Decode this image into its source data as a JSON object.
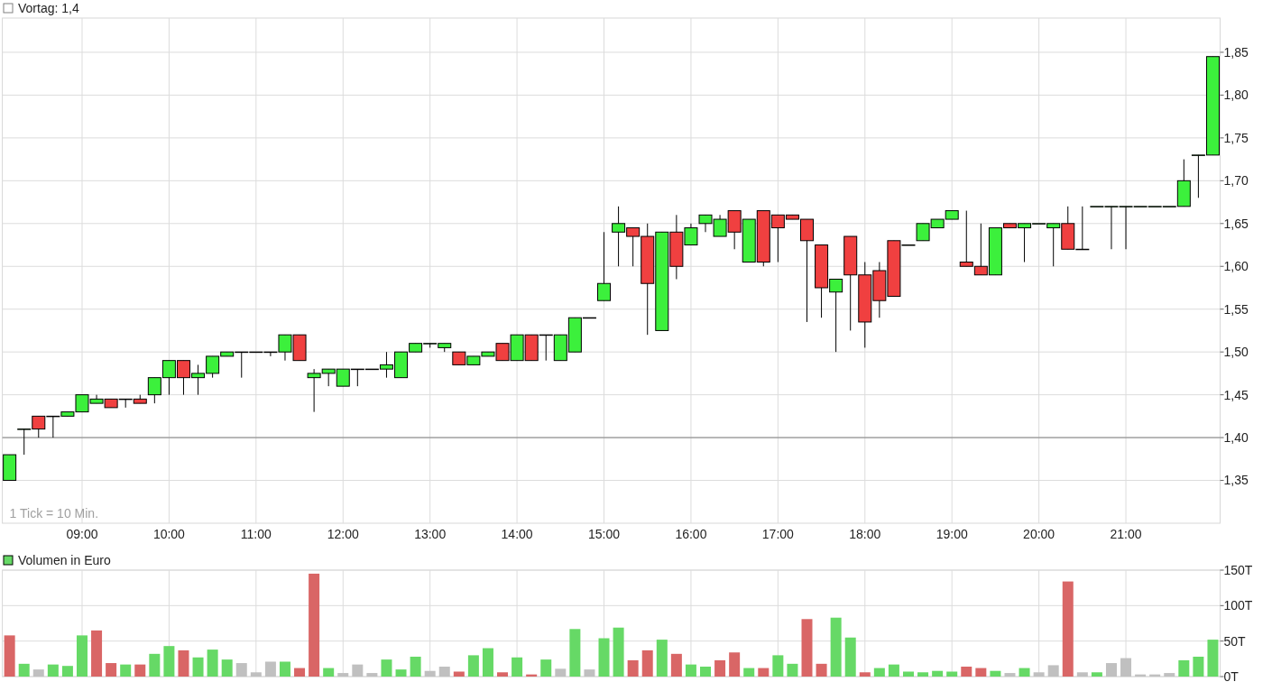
{
  "chart_data": [
    {
      "type": "candlestick",
      "legend": "top left",
      "grid": true,
      "categories": [
        null,
        null,
        null,
        null,
        null,
        "09:00",
        null,
        null,
        null,
        null,
        null,
        "10:00",
        null,
        null,
        null,
        null,
        null,
        "11:00",
        null,
        null,
        null,
        null,
        null,
        "12:00",
        null,
        null,
        null,
        null,
        null,
        "13:00",
        null,
        null,
        null,
        null,
        null,
        "14:00",
        null,
        null,
        null,
        null,
        null,
        "15:00",
        null,
        null,
        null,
        null,
        null,
        "16:00",
        null,
        null,
        null,
        null,
        null,
        "17:00",
        null,
        null,
        null,
        null,
        null,
        "18:00",
        null,
        null,
        null,
        null,
        null,
        "19:00",
        null,
        null,
        null,
        null,
        null,
        "20:00",
        null,
        null,
        null,
        null,
        null,
        "21:00",
        null,
        null,
        null,
        null,
        null,
        null
      ],
      "ohlc": [
        [
          1.35,
          1.38,
          1.35,
          1.38
        ],
        [
          1.41,
          1.41,
          1.38,
          1.41
        ],
        [
          1.425,
          1.425,
          1.4,
          1.41
        ],
        [
          1.425,
          1.425,
          1.4,
          1.425
        ],
        [
          1.425,
          1.43,
          1.425,
          1.43
        ],
        [
          1.43,
          1.45,
          1.43,
          1.45
        ],
        [
          1.44,
          1.45,
          1.44,
          1.445
        ],
        [
          1.445,
          1.445,
          1.435,
          1.435
        ],
        [
          1.445,
          1.445,
          1.435,
          1.445
        ],
        [
          1.445,
          1.45,
          1.44,
          1.44
        ],
        [
          1.45,
          1.47,
          1.44,
          1.47
        ],
        [
          1.47,
          1.49,
          1.45,
          1.49
        ],
        [
          1.49,
          1.49,
          1.45,
          1.47
        ],
        [
          1.47,
          1.485,
          1.45,
          1.475
        ],
        [
          1.475,
          1.495,
          1.47,
          1.495
        ],
        [
          1.495,
          1.5,
          1.495,
          1.5
        ],
        [
          1.5,
          1.5,
          1.47,
          1.5
        ],
        [
          1.5,
          1.5,
          1.5,
          1.5
        ],
        [
          1.5,
          1.5,
          1.495,
          1.5
        ],
        [
          1.5,
          1.52,
          1.49,
          1.52
        ],
        [
          1.52,
          1.52,
          1.49,
          1.49
        ],
        [
          1.47,
          1.48,
          1.43,
          1.475
        ],
        [
          1.475,
          1.48,
          1.46,
          1.48
        ],
        [
          1.46,
          1.48,
          1.46,
          1.48
        ],
        [
          1.48,
          1.48,
          1.46,
          1.48
        ],
        [
          1.48,
          1.48,
          1.48,
          1.48
        ],
        [
          1.48,
          1.5,
          1.47,
          1.485
        ],
        [
          1.47,
          1.5,
          1.47,
          1.5
        ],
        [
          1.5,
          1.51,
          1.5,
          1.51
        ],
        [
          1.51,
          1.51,
          1.505,
          1.51
        ],
        [
          1.505,
          1.51,
          1.5,
          1.51
        ],
        [
          1.5,
          1.5,
          1.485,
          1.485
        ],
        [
          1.485,
          1.495,
          1.485,
          1.495
        ],
        [
          1.495,
          1.5,
          1.495,
          1.5
        ],
        [
          1.51,
          1.51,
          1.49,
          1.49
        ],
        [
          1.49,
          1.52,
          1.49,
          1.52
        ],
        [
          1.52,
          1.52,
          1.49,
          1.49
        ],
        [
          1.52,
          1.52,
          1.49,
          1.52
        ],
        [
          1.49,
          1.52,
          1.49,
          1.52
        ],
        [
          1.5,
          1.54,
          1.5,
          1.54
        ],
        [
          1.54,
          1.54,
          1.54,
          1.54
        ],
        [
          1.56,
          1.64,
          1.56,
          1.58
        ],
        [
          1.64,
          1.67,
          1.6,
          1.65
        ],
        [
          1.645,
          1.645,
          1.6,
          1.635
        ],
        [
          1.635,
          1.65,
          1.52,
          1.58
        ],
        [
          1.525,
          1.64,
          1.525,
          1.64
        ],
        [
          1.64,
          1.66,
          1.585,
          1.6
        ],
        [
          1.625,
          1.65,
          1.625,
          1.645
        ],
        [
          1.65,
          1.66,
          1.64,
          1.66
        ],
        [
          1.635,
          1.66,
          1.635,
          1.655
        ],
        [
          1.665,
          1.665,
          1.62,
          1.64
        ],
        [
          1.605,
          1.655,
          1.605,
          1.655
        ],
        [
          1.665,
          1.665,
          1.6,
          1.605
        ],
        [
          1.66,
          1.66,
          1.605,
          1.645
        ],
        [
          1.66,
          1.66,
          1.655,
          1.655
        ],
        [
          1.655,
          1.655,
          1.535,
          1.63
        ],
        [
          1.625,
          1.625,
          1.54,
          1.575
        ],
        [
          1.57,
          1.585,
          1.5,
          1.585
        ],
        [
          1.635,
          1.635,
          1.525,
          1.59
        ],
        [
          1.59,
          1.605,
          1.505,
          1.535
        ],
        [
          1.595,
          1.605,
          1.54,
          1.56
        ],
        [
          1.63,
          1.63,
          1.565,
          1.565
        ],
        [
          1.625,
          1.625,
          1.625,
          1.625
        ],
        [
          1.63,
          1.65,
          1.63,
          1.65
        ],
        [
          1.645,
          1.655,
          1.645,
          1.655
        ],
        [
          1.655,
          1.665,
          1.655,
          1.665
        ],
        [
          1.605,
          1.665,
          1.6,
          1.6
        ],
        [
          1.6,
          1.65,
          1.59,
          1.59
        ],
        [
          1.59,
          1.645,
          1.59,
          1.645
        ],
        [
          1.65,
          1.65,
          1.645,
          1.645
        ],
        [
          1.645,
          1.65,
          1.605,
          1.65
        ],
        [
          1.65,
          1.65,
          1.65,
          1.65
        ],
        [
          1.645,
          1.65,
          1.6,
          1.65
        ],
        [
          1.65,
          1.67,
          1.62,
          1.62
        ],
        [
          1.62,
          1.67,
          1.62,
          1.62
        ],
        [
          1.67,
          1.67,
          1.67,
          1.67
        ],
        [
          1.67,
          1.67,
          1.62,
          1.67
        ],
        [
          1.67,
          1.67,
          1.62,
          1.67
        ],
        [
          1.67,
          1.67,
          1.67,
          1.67
        ],
        [
          1.67,
          1.67,
          1.67,
          1.67
        ],
        [
          1.67,
          1.67,
          1.67,
          1.67
        ],
        [
          1.67,
          1.725,
          1.67,
          1.7
        ],
        [
          1.73,
          1.73,
          1.68,
          1.73
        ],
        [
          1.73,
          1.845,
          1.73,
          1.845
        ]
      ],
      "colors": [
        "#3cf03c",
        "#3cf03c",
        "#f04040",
        "#3cf03c",
        "#3cf03c",
        "#3cf03c",
        "#3cf03c",
        "#f04040",
        "#3cf03c",
        "#f04040",
        "#3cf03c",
        "#3cf03c",
        "#f04040",
        "#3cf03c",
        "#3cf03c",
        "#3cf03c",
        "#3cf03c",
        "#3cf03c",
        "#3cf03c",
        "#3cf03c",
        "#f04040",
        "#3cf03c",
        "#3cf03c",
        "#3cf03c",
        "#3cf03c",
        "#3cf03c",
        "#3cf03c",
        "#3cf03c",
        "#3cf03c",
        "#3cf03c",
        "#3cf03c",
        "#f04040",
        "#3cf03c",
        "#3cf03c",
        "#f04040",
        "#3cf03c",
        "#f04040",
        "#3cf03c",
        "#3cf03c",
        "#3cf03c",
        "#3cf03c",
        "#3cf03c",
        "#3cf03c",
        "#f04040",
        "#f04040",
        "#3cf03c",
        "#f04040",
        "#3cf03c",
        "#3cf03c",
        "#3cf03c",
        "#f04040",
        "#3cf03c",
        "#f04040",
        "#f04040",
        "#f04040",
        "#f04040",
        "#f04040",
        "#3cf03c",
        "#f04040",
        "#f04040",
        "#f04040",
        "#f04040",
        "#3cf03c",
        "#3cf03c",
        "#3cf03c",
        "#3cf03c",
        "#f04040",
        "#f04040",
        "#3cf03c",
        "#f04040",
        "#3cf03c",
        "#3cf03c",
        "#3cf03c",
        "#f04040",
        "#3cf03c",
        "#3cf03c",
        "#3cf03c",
        "#3cf03c",
        "#3cf03c",
        "#3cf03c",
        "#3cf03c",
        "#3cf03c",
        "#3cf03c",
        "#3cf03c"
      ],
      "ylim": [
        1.3,
        1.89
      ],
      "yticks": [
        {
          "value": 1.35,
          "label": "1,35"
        },
        {
          "value": 1.4,
          "label": "1,40"
        },
        {
          "value": 1.45,
          "label": "1,45"
        },
        {
          "value": 1.5,
          "label": "1,50"
        },
        {
          "value": 1.55,
          "label": "1,55"
        },
        {
          "value": 1.6,
          "label": "1,60"
        },
        {
          "value": 1.65,
          "label": "1,65"
        },
        {
          "value": 1.7,
          "label": "1,70"
        },
        {
          "value": 1.75,
          "label": "1,75"
        },
        {
          "value": 1.8,
          "label": "1,80"
        },
        {
          "value": 1.85,
          "label": "1,85"
        }
      ],
      "ref_lines": [
        {
          "axis": "y",
          "value": 1.4,
          "label": "Vortag: 1,4",
          "color": "#808080"
        }
      ],
      "annotations": [
        "1 Tick = 10 Min."
      ]
    },
    {
      "type": "bar",
      "legend": "top left",
      "grid": true,
      "tick_labels": "y",
      "categories": [
        null,
        null,
        null,
        null,
        null,
        null,
        null,
        null,
        null,
        null,
        null,
        null,
        null,
        null,
        null,
        null,
        null,
        null,
        null,
        null,
        null,
        null,
        null,
        null,
        null,
        null,
        null,
        null,
        null,
        null,
        null,
        null,
        null,
        null,
        null,
        null,
        null,
        null,
        null,
        null,
        null,
        null,
        null,
        null,
        null,
        null,
        null,
        null,
        null,
        null,
        null,
        null,
        null,
        null,
        null,
        null,
        null,
        null,
        null,
        null,
        null,
        null,
        null,
        null,
        null,
        null,
        null,
        null,
        null,
        null,
        null,
        null,
        null,
        null,
        null,
        null,
        null,
        null,
        null,
        null,
        null,
        null,
        null,
        null
      ],
      "series": [
        {
          "name": "Volumen in Euro",
          "color": "#66d966",
          "values": [
            58,
            18,
            10,
            17,
            15,
            58,
            65,
            19,
            17,
            17,
            32,
            43,
            37,
            27,
            38,
            24,
            19,
            6,
            21,
            21,
            12,
            145,
            12,
            5,
            17,
            5,
            24,
            10,
            28,
            8,
            14,
            7,
            30,
            40,
            6,
            27,
            3,
            24,
            11,
            67,
            10,
            54,
            69,
            23,
            37,
            52,
            32,
            17,
            14,
            23,
            34,
            12,
            12,
            30,
            18,
            81,
            18,
            83,
            55,
            6,
            12,
            17,
            7,
            6,
            8,
            7,
            14,
            12,
            8,
            5,
            12,
            6,
            16,
            134,
            6,
            6,
            19,
            26,
            3,
            3,
            5,
            23,
            28,
            52
          ],
          "colors": [
            "#d96666",
            "#66d966",
            "#c0c0c0",
            "#66d966",
            "#66d966",
            "#66d966",
            "#d96666",
            "#d96666",
            "#66d966",
            "#d96666",
            "#66d966",
            "#66d966",
            "#d96666",
            "#66d966",
            "#66d966",
            "#66d966",
            "#c0c0c0",
            "#c0c0c0",
            "#c0c0c0",
            "#66d966",
            "#d96666",
            "#d96666",
            "#66d966",
            "#c0c0c0",
            "#c0c0c0",
            "#c0c0c0",
            "#66d966",
            "#66d966",
            "#66d966",
            "#c0c0c0",
            "#c0c0c0",
            "#d96666",
            "#66d966",
            "#66d966",
            "#d96666",
            "#66d966",
            "#d96666",
            "#66d966",
            "#c0c0c0",
            "#66d966",
            "#c0c0c0",
            "#66d966",
            "#66d966",
            "#d96666",
            "#d96666",
            "#66d966",
            "#d96666",
            "#66d966",
            "#66d966",
            "#d96666",
            "#d96666",
            "#66d966",
            "#d96666",
            "#66d966",
            "#66d966",
            "#d96666",
            "#d96666",
            "#66d966",
            "#66d966",
            "#d96666",
            "#66d966",
            "#66d966",
            "#66d966",
            "#66d966",
            "#66d966",
            "#66d966",
            "#d96666",
            "#d96666",
            "#66d966",
            "#c0c0c0",
            "#66d966",
            "#c0c0c0",
            "#c0c0c0",
            "#d96666",
            "#c0c0c0",
            "#66d966",
            "#c0c0c0",
            "#c0c0c0",
            "#c0c0c0",
            "#c0c0c0",
            "#c0c0c0",
            "#66d966",
            "#66d966",
            "#66d966"
          ]
        }
      ],
      "ylim": [
        0,
        150
      ],
      "yticks": [
        {
          "value": 0,
          "label": "0T"
        },
        {
          "value": 50,
          "label": "50T"
        },
        {
          "value": 100,
          "label": "100T"
        },
        {
          "value": 150,
          "label": "150T"
        }
      ]
    }
  ]
}
